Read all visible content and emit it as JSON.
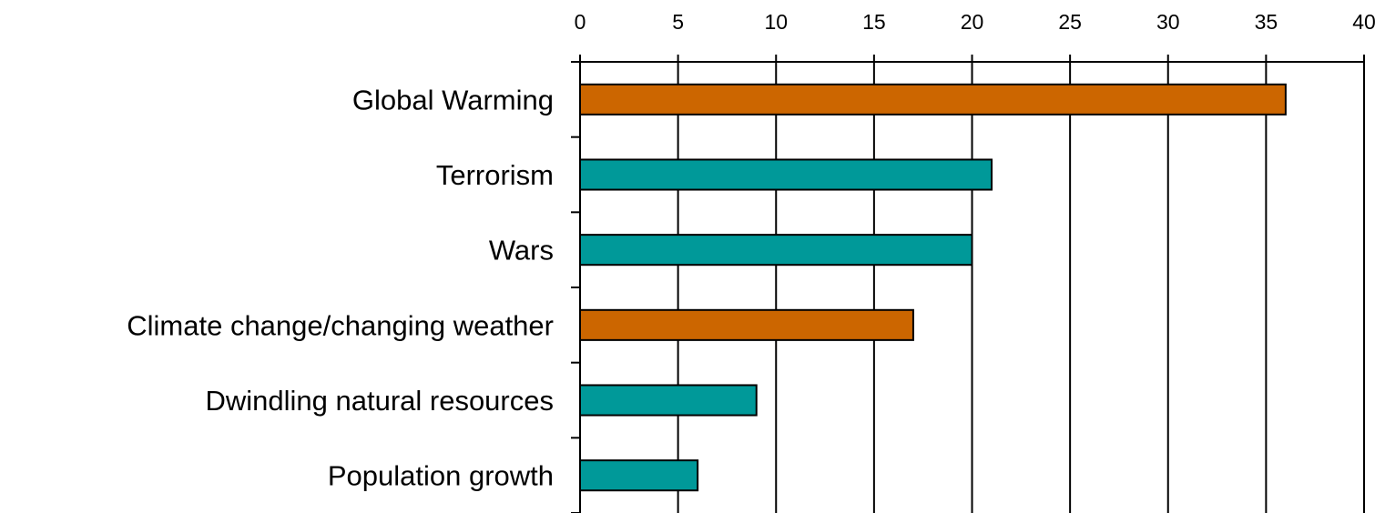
{
  "chart_data": {
    "type": "bar",
    "orientation": "horizontal",
    "categories": [
      "Global Warming",
      "Terrorism",
      "Wars",
      "Climate change/changing weather",
      "Dwindling natural resources",
      "Population growth"
    ],
    "values": [
      36,
      21,
      20,
      17,
      9,
      6
    ],
    "bar_colors": [
      "#CC6600",
      "#009999",
      "#009999",
      "#CC6600",
      "#009999",
      "#009999"
    ],
    "xlim": [
      0,
      40
    ],
    "x_ticks": [
      "0",
      "5",
      "10",
      "15",
      "20",
      "25",
      "30",
      "35",
      "40"
    ],
    "x_axis_position": "top",
    "grid": "vertical gridlines",
    "title": "",
    "xlabel": "",
    "ylabel": ""
  }
}
